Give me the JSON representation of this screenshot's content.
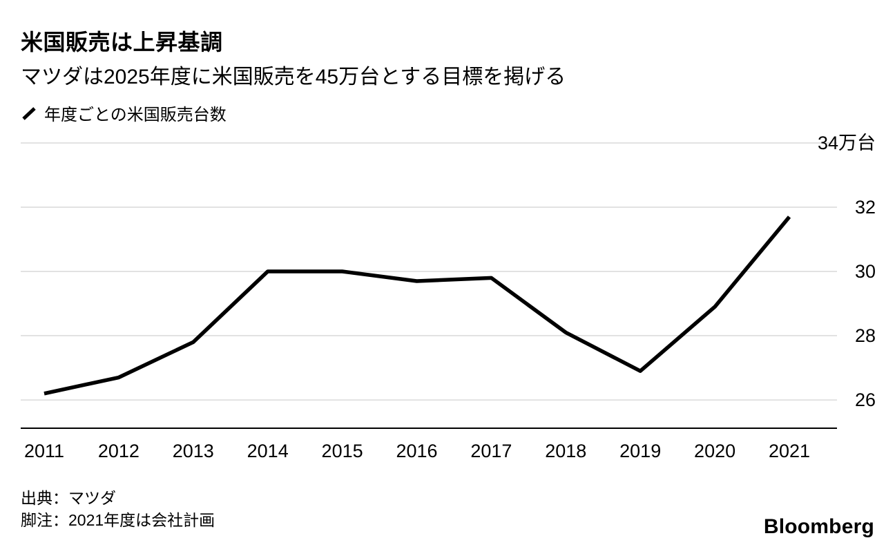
{
  "header": {
    "title": "米国販売は上昇基調",
    "subtitle": "マツダは2025年度に米国販売を45万台とする目標を掲げる"
  },
  "legend": {
    "label": "年度ごとの米国販売台数"
  },
  "chart_data": {
    "type": "line",
    "title": "米国販売は上昇基調",
    "subtitle": "マツダは2025年度に米国販売を45万台とする目標を掲げる",
    "x": [
      "2011",
      "2012",
      "2013",
      "2014",
      "2015",
      "2016",
      "2017",
      "2018",
      "2019",
      "2020",
      "2021"
    ],
    "series": [
      {
        "name": "年度ごとの米国販売台数",
        "values": [
          26.2,
          26.7,
          27.8,
          30.0,
          30.0,
          29.7,
          29.8,
          28.1,
          26.9,
          28.9,
          31.7
        ]
      }
    ],
    "unit": "万台",
    "yticks": [
      26,
      28,
      30,
      32,
      34
    ],
    "ytick_labels": [
      "26",
      "28",
      "30",
      "32",
      "34万台"
    ],
    "ylim": [
      25.12,
      34
    ],
    "grid": true,
    "legend_position": "top-left",
    "line_color": "#000000",
    "grid_color": "#d9d9d9",
    "axis_color": "#000000"
  },
  "footer": {
    "source": "出典：マツダ",
    "footnote": "脚注：2021年度は会社計画",
    "logo": "Bloomberg"
  }
}
